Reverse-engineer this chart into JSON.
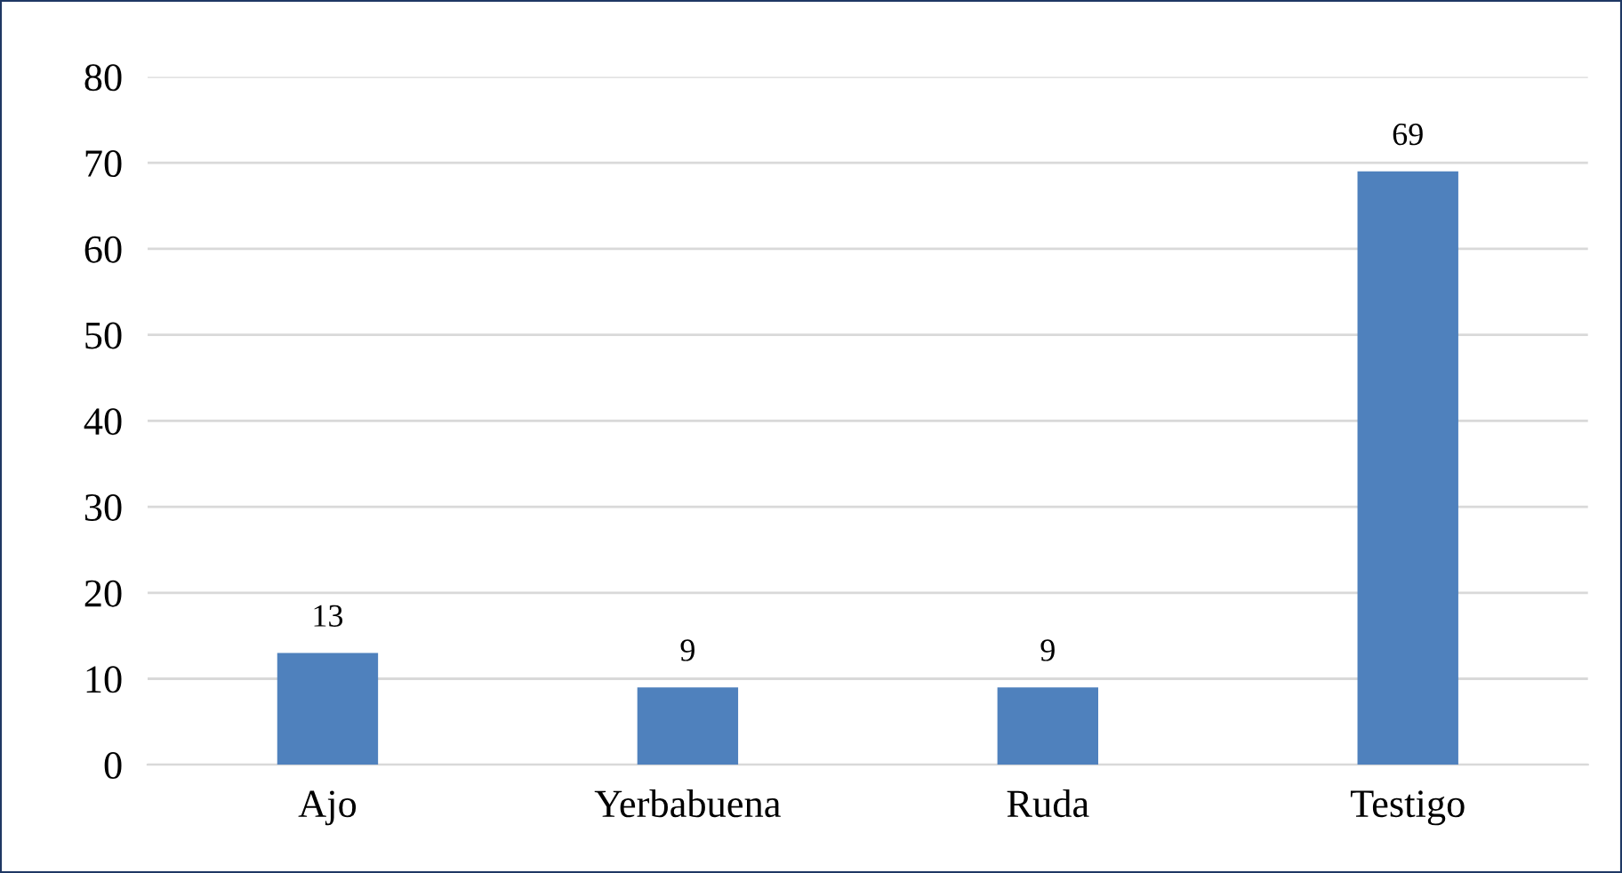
{
  "chart_data": {
    "type": "bar",
    "categories": [
      "Ajo",
      "Yerbabuena",
      "Ruda",
      "Testigo"
    ],
    "values": [
      13,
      9,
      9,
      69
    ],
    "color": "#4f81bd",
    "ylim": [
      0,
      80
    ],
    "yticks": [
      0,
      10,
      20,
      30,
      40,
      50,
      60,
      70,
      80
    ],
    "grid": "y",
    "data_labels": true
  }
}
